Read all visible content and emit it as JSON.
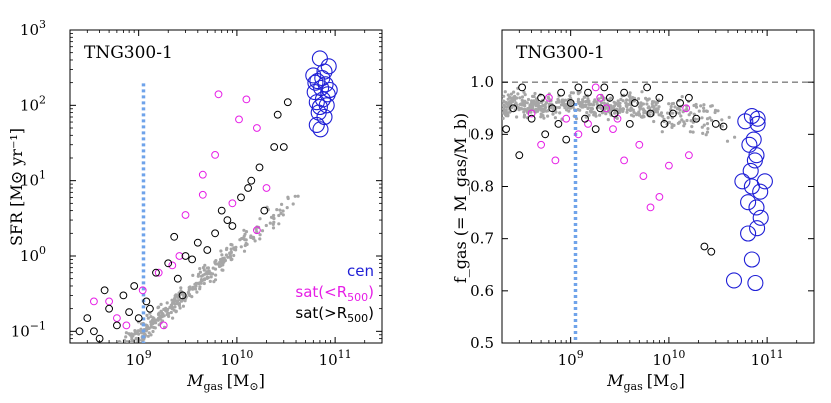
{
  "colors": {
    "cen": "#1f1fd6",
    "sat_in": "#e61ee6",
    "sat_out": "#000000",
    "field": "#a6a6a6",
    "vline": "#6fa3ea",
    "hline": "#7f7f7f"
  },
  "chart_data": [
    {
      "type": "scatter",
      "panel": "left",
      "annotation": "TNG300-1",
      "xlabel_main": "M",
      "xlabel_sub": "gas",
      "xlabel_unit": "[M",
      "xlabel_unit_sub": "⊙",
      "xlabel_close": "]",
      "ylabel": "SFR [M⊙ yr⁻¹]",
      "xscale": "log",
      "yscale": "log",
      "xlim": [
        200000000.0,
        300000000000.0
      ],
      "ylim": [
        0.07,
        1000
      ],
      "xticks": [
        {
          "value": 1000000000.0,
          "base": "10",
          "exp": "9"
        },
        {
          "value": 10000000000.0,
          "base": "10",
          "exp": "10"
        },
        {
          "value": 100000000000.0,
          "base": "10",
          "exp": "11"
        }
      ],
      "yticks": [
        {
          "value": 0.1,
          "base": "10",
          "exp": "−1"
        },
        {
          "value": 1,
          "base": "10",
          "exp": "0"
        },
        {
          "value": 10,
          "base": "10",
          "exp": "1"
        },
        {
          "value": 100,
          "base": "10",
          "exp": "2"
        },
        {
          "value": 1000,
          "base": "10",
          "exp": "3"
        }
      ],
      "vline_x": 1120000000.0,
      "legend_position": "bottom-right",
      "legend": [
        {
          "label": "cen",
          "sub": "",
          "tail": "",
          "color_key": "cen"
        },
        {
          "label": "sat(<R",
          "sub": "500",
          "tail": ")",
          "color_key": "sat_in"
        },
        {
          "label": "sat(>R",
          "sub": "500",
          "tail": ")",
          "color_key": "sat_out"
        }
      ],
      "series": [
        {
          "name": "cen",
          "size": "large",
          "points": [
            [
              70000000000.0,
              420
            ],
            [
              86000000000.0,
              330
            ],
            [
              60000000000.0,
              250
            ],
            [
              78000000000.0,
              280
            ],
            [
              66000000000.0,
              210
            ],
            [
              80000000000.0,
              190
            ],
            [
              72000000000.0,
              170
            ],
            [
              62000000000.0,
              150
            ],
            [
              84000000000.0,
              140
            ],
            [
              75000000000.0,
              120
            ],
            [
              65000000000.0,
              110
            ],
            [
              82000000000.0,
              100
            ],
            [
              70000000000.0,
              95
            ],
            [
              68000000000.0,
              80
            ],
            [
              78000000000.0,
              70
            ],
            [
              63000000000.0,
              200
            ],
            [
              74000000000.0,
              230
            ],
            [
              65000000000.0,
              55
            ],
            [
              71000000000.0,
              48
            ],
            [
              88000000000.0,
              160
            ]
          ]
        },
        {
          "name": "sat_in",
          "size": "small",
          "points": [
            [
              6500000000.0,
              140
            ],
            [
              10500000000.0,
              65
            ],
            [
              12500000000.0,
              120
            ],
            [
              16000000000.0,
              50
            ],
            [
              6000000000.0,
              22
            ],
            [
              4500000000.0,
              12
            ],
            [
              3000000000.0,
              3.5
            ],
            [
              2600000000.0,
              1.0
            ],
            [
              1600000000.0,
              0.6
            ],
            [
              1100000000.0,
              0.35
            ],
            [
              500000000.0,
              0.25
            ],
            [
              16000000000.0,
              2.2
            ],
            [
              4500000000.0,
              6.5
            ],
            [
              9000000000.0,
              5.0
            ],
            [
              350000000.0,
              0.25
            ],
            [
              750000000.0,
              0.12
            ],
            [
              600000000.0,
              0.15
            ],
            [
              2200000000.0,
              0.75
            ],
            [
              20000000000.0,
              8.0
            ],
            [
              1800000000.0,
              0.12
            ]
          ]
        },
        {
          "name": "sat_out",
          "size": "small",
          "points": [
            [
              26000000000.0,
              75
            ],
            [
              33000000000.0,
              110
            ],
            [
              24000000000.0,
              28
            ],
            [
              30000000000.0,
              28
            ],
            [
              13000000000.0,
              8.0
            ],
            [
              11000000000.0,
              6.0
            ],
            [
              8000000000.0,
              3.0
            ],
            [
              6000000000.0,
              2.0
            ],
            [
              4000000000.0,
              1.5
            ],
            [
              3000000000.0,
              1.0
            ],
            [
              2000000000.0,
              0.8
            ],
            [
              1500000000.0,
              0.6
            ],
            [
              900000000.0,
              0.4
            ],
            [
              700000000.0,
              0.3
            ],
            [
              500000000.0,
              0.2
            ],
            [
              300000000.0,
              0.15
            ],
            [
              250000000.0,
              0.1
            ],
            [
              400000000.0,
              0.08
            ],
            [
              1200000000.0,
              0.25
            ],
            [
              800000000.0,
              0.18
            ],
            [
              17000000000.0,
              15
            ],
            [
              14000000000.0,
              10
            ],
            [
              5000000000.0,
              1.2
            ],
            [
              3500000000.0,
              0.9
            ],
            [
              2500000000.0,
              0.5
            ],
            [
              1300000000.0,
              0.2
            ],
            [
              600000000.0,
              0.12
            ],
            [
              350000000.0,
              0.1
            ],
            [
              2800000000.0,
              0.3
            ],
            [
              1000000000.0,
              0.15
            ],
            [
              7000000000.0,
              4.0
            ],
            [
              9000000000.0,
              2.5
            ],
            [
              19000000000.0,
              4.0
            ],
            [
              2300000000.0,
              1.8
            ],
            [
              450000000.0,
              0.35
            ]
          ]
        }
      ]
    },
    {
      "type": "scatter",
      "panel": "right",
      "annotation": "TNG300-1",
      "xlabel_main": "M",
      "xlabel_sub": "gas",
      "xlabel_unit": "[M",
      "xlabel_unit_sub": "⊙",
      "xlabel_close": "]",
      "ylabel": "f_gas (= M_gas/M_b)",
      "xscale": "log",
      "yscale": "linear",
      "xlim": [
        200000000.0,
        300000000000.0
      ],
      "ylim": [
        0.5,
        1.1
      ],
      "xticks": [
        {
          "value": 1000000000.0,
          "base": "10",
          "exp": "9"
        },
        {
          "value": 10000000000.0,
          "base": "10",
          "exp": "10"
        },
        {
          "value": 100000000000.0,
          "base": "10",
          "exp": "11"
        }
      ],
      "yticks": [
        {
          "value": 0.5,
          "label": "0.5"
        },
        {
          "value": 0.6,
          "label": "0.6"
        },
        {
          "value": 0.7,
          "label": "0.7"
        },
        {
          "value": 0.8,
          "label": "0.8"
        },
        {
          "value": 0.9,
          "label": "0.9"
        },
        {
          "value": 1.0,
          "label": "1.0"
        }
      ],
      "vline_x": 1120000000.0,
      "hline_y": 1.0,
      "series": [
        {
          "name": "cen",
          "size": "large",
          "points": [
            [
              70000000000.0,
              0.935
            ],
            [
              60000000000.0,
              0.925
            ],
            [
              80000000000.0,
              0.92
            ],
            [
              73000000000.0,
              0.89
            ],
            [
              66000000000.0,
              0.88
            ],
            [
              78000000000.0,
              0.86
            ],
            [
              75000000000.0,
              0.85
            ],
            [
              68000000000.0,
              0.83
            ],
            [
              56000000000.0,
              0.81
            ],
            [
              70000000000.0,
              0.8
            ],
            [
              85000000000.0,
              0.79
            ],
            [
              95000000000.0,
              0.81
            ],
            [
              64000000000.0,
              0.77
            ],
            [
              78000000000.0,
              0.76
            ],
            [
              86000000000.0,
              0.74
            ],
            [
              79000000000.0,
              0.72
            ],
            [
              64000000000.0,
              0.71
            ],
            [
              70000000000.0,
              0.66
            ],
            [
              46000000000.0,
              0.62
            ],
            [
              76000000000.0,
              0.615
            ],
            [
              80000000000.0,
              0.93
            ]
          ]
        },
        {
          "name": "sat_in",
          "size": "small",
          "points": [
            [
              16000000000.0,
              0.86
            ],
            [
              10000000000.0,
              0.84
            ],
            [
              5500000000.0,
              0.82
            ],
            [
              5000000000.0,
              0.88
            ],
            [
              3500000000.0,
              0.85
            ],
            [
              6500000000.0,
              0.76
            ],
            [
              8000000000.0,
              0.78
            ],
            [
              15000000000.0,
              0.95
            ],
            [
              2300000000.0,
              0.95
            ],
            [
              1500000000.0,
              0.92
            ],
            [
              900000000.0,
              0.93
            ],
            [
              600000000.0,
              0.97
            ],
            [
              400000000.0,
              0.94
            ],
            [
              1200000000.0,
              0.9
            ],
            [
              2000000000.0,
              0.97
            ],
            [
              3000000000.0,
              0.93
            ],
            [
              700000000.0,
              0.85
            ],
            [
              500000000.0,
              0.88
            ],
            [
              1800000000.0,
              0.99
            ],
            [
              2700000000.0,
              0.91
            ]
          ]
        },
        {
          "name": "sat_out",
          "size": "small",
          "points": [
            [
              23000000000.0,
              0.685
            ],
            [
              27000000000.0,
              0.675
            ],
            [
              30000000000.0,
              0.92
            ],
            [
              16000000000.0,
              0.97
            ],
            [
              13000000000.0,
              0.96
            ],
            [
              11000000000.0,
              0.94
            ],
            [
              8000000000.0,
              0.97
            ],
            [
              6000000000.0,
              0.99
            ],
            [
              4500000000.0,
              0.96
            ],
            [
              3500000000.0,
              0.98
            ],
            [
              2500000000.0,
              0.97
            ],
            [
              2000000000.0,
              0.95
            ],
            [
              1500000000.0,
              0.98
            ],
            [
              1200000000.0,
              0.99
            ],
            [
              1000000000.0,
              0.96
            ],
            [
              800000000.0,
              0.98
            ],
            [
              650000000.0,
              0.95
            ],
            [
              500000000.0,
              0.97
            ],
            [
              400000000.0,
              0.93
            ],
            [
              320000000.0,
              0.99
            ],
            [
              260000000.0,
              0.95
            ],
            [
              220000000.0,
              0.91
            ],
            [
              300000000.0,
              0.86
            ],
            [
              550000000.0,
              0.9
            ],
            [
              750000000.0,
              0.92
            ],
            [
              900000000.0,
              0.89
            ],
            [
              1400000000.0,
              0.93
            ],
            [
              1800000000.0,
              0.91
            ],
            [
              2800000000.0,
              0.94
            ],
            [
              4000000000.0,
              0.92
            ],
            [
              6500000000.0,
              0.94
            ],
            [
              9000000000.0,
              0.92
            ],
            [
              19000000000.0,
              0.93
            ],
            [
              36000000000.0,
              0.915
            ],
            [
              2200000000.0,
              0.99
            ]
          ]
        }
      ]
    }
  ]
}
